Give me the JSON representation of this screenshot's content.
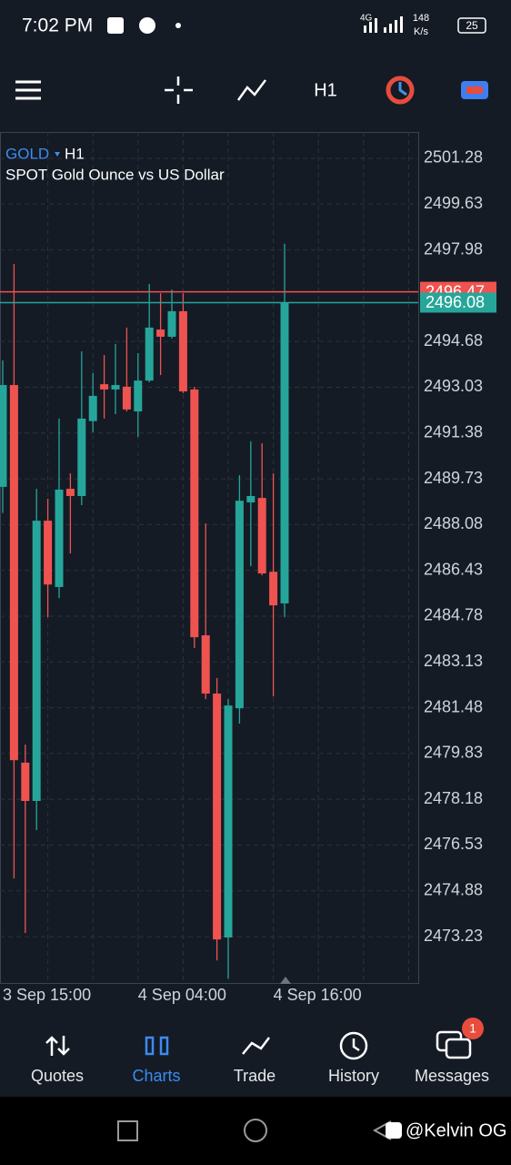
{
  "status_bar": {
    "time": "7:02 PM",
    "network": "4G",
    "speed": "148",
    "speed_unit": "K/s",
    "battery": "25"
  },
  "toolbar": {
    "timeframe": "H1"
  },
  "chart_data": {
    "type": "candlestick",
    "symbol": "GOLD",
    "timeframe": "H1",
    "title": "SPOT Gold Ounce vs US Dollar",
    "categories": [
      "3 Sep 15:00",
      null,
      null,
      null,
      null,
      null,
      null,
      null,
      null,
      null,
      null,
      null,
      "4 Sep 04:00",
      null,
      null,
      null,
      null,
      null,
      null,
      null,
      null,
      null,
      null,
      null,
      "4 Sep 16:00",
      null
    ],
    "open": [
      2489.44,
      2493.11,
      2479.5,
      2478.12,
      2488.22,
      2485.83,
      2489.37,
      2489.11,
      2491.81,
      2493.14,
      2492.95,
      2493.05,
      2492.16,
      2493.27,
      2495.11,
      2494.85,
      2495.77,
      2492.95,
      2484.09,
      2481.99,
      2473.2,
      2481.46,
      2488.88,
      2489.04,
      2486.38,
      2485.24
    ],
    "high": [
      2494.0,
      2497.47,
      2480.15,
      2489.37,
      2489.01,
      2491.9,
      2489.93,
      2494.32,
      2493.54,
      2494.19,
      2494.59,
      2495.18,
      2494.26,
      2496.75,
      2496.42,
      2496.55,
      2496.42,
      2493.05,
      2488.12,
      2482.55,
      2481.79,
      2489.86,
      2491.08,
      2491.01,
      2489.93,
      2498.2
    ],
    "low": [
      2488.5,
      2475.33,
      2473.36,
      2477.07,
      2484.74,
      2485.43,
      2487.04,
      2488.78,
      2491.41,
      2491.9,
      2492.06,
      2492.16,
      2491.24,
      2493.21,
      2493.47,
      2494.78,
      2492.82,
      2483.63,
      2481.79,
      2472.37,
      2471.72,
      2480.91,
      2486.58,
      2486.25,
      2481.89,
      2484.74
    ],
    "close": [
      2493.11,
      2479.59,
      2478.12,
      2488.22,
      2485.92,
      2489.34,
      2489.11,
      2491.9,
      2492.72,
      2492.95,
      2493.11,
      2492.23,
      2493.27,
      2495.18,
      2494.85,
      2495.77,
      2492.88,
      2484.02,
      2481.99,
      2473.13,
      2481.56,
      2488.94,
      2489.11,
      2486.32,
      2485.17,
      2496.08
    ],
    "up_color": "#26a69a",
    "down_color": "#ef5350",
    "ylim": [
      2471.56,
      2502.23
    ],
    "yticks": [
      2501.28,
      2499.63,
      2497.98,
      2494.68,
      2493.03,
      2491.38,
      2489.73,
      2488.08,
      2486.43,
      2484.78,
      2483.13,
      2481.48,
      2479.83,
      2478.18,
      2476.53,
      2474.88,
      2473.23
    ],
    "grid": true,
    "price_lines": [
      {
        "value": 2496.47,
        "color": "#ef5350"
      },
      {
        "value": 2496.08,
        "color": "#26a69a"
      }
    ]
  },
  "bottom_nav": {
    "items": [
      "Quotes",
      "Charts",
      "Trade",
      "History",
      "Messages"
    ],
    "badge": "1"
  },
  "watermark": "@Kelvin OG"
}
